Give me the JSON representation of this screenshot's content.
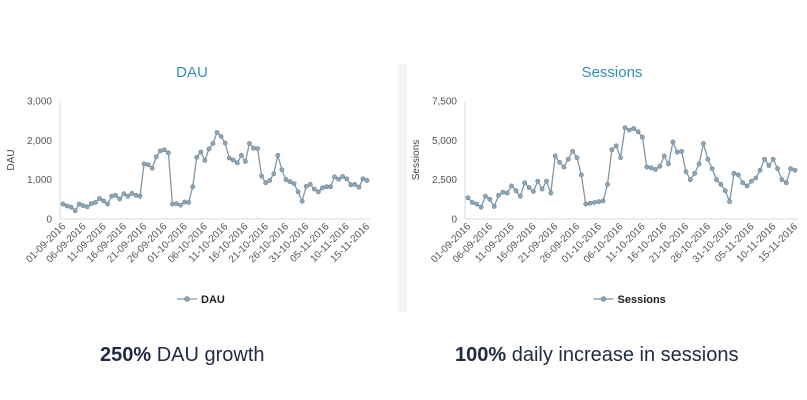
{
  "chart_data": [
    {
      "type": "line",
      "title": "DAU",
      "ylabel": "DAU",
      "xlabel": "",
      "ylim": [
        0,
        3000
      ],
      "yticks": [
        "0",
        "1,000",
        "2,000",
        "3,000"
      ],
      "yticks_values": [
        0,
        1000,
        2000,
        3000
      ],
      "x_tick_labels": [
        "01-09-2016",
        "06-09-2016",
        "11-09-2016",
        "16-09-2016",
        "21-09-2016",
        "26-09-2016",
        "01-10-2016",
        "06-10-2016",
        "11-10-2016",
        "16-10-2016",
        "21-10-2016",
        "26-10-2016",
        "31-10-2016",
        "05-11-2016",
        "10-11-2016",
        "15-11-2016"
      ],
      "legend": "bottom",
      "grid": false,
      "series": [
        {
          "name": "DAU",
          "color": "#7f97a8",
          "values": [
            380,
            330,
            300,
            210,
            380,
            340,
            310,
            390,
            420,
            520,
            460,
            380,
            580,
            600,
            510,
            640,
            580,
            650,
            600,
            580,
            1400,
            1380,
            1290,
            1580,
            1730,
            1760,
            1680,
            380,
            390,
            350,
            430,
            420,
            820,
            1570,
            1700,
            1490,
            1780,
            1920,
            2200,
            2100,
            1930,
            1550,
            1500,
            1430,
            1620,
            1460,
            1920,
            1800,
            1790,
            1090,
            920,
            980,
            1150,
            1620,
            1250,
            1000,
            950,
            900,
            690,
            450,
            830,
            880,
            760,
            690,
            790,
            820,
            820,
            1070,
            1010,
            1080,
            1020,
            870,
            880,
            810,
            1020,
            980
          ]
        }
      ]
    },
    {
      "type": "line",
      "title": "Sessions",
      "ylabel": "Sessions",
      "xlabel": "",
      "ylim": [
        0,
        7500
      ],
      "yticks": [
        "0",
        "2,500",
        "5,000",
        "7,500"
      ],
      "yticks_values": [
        0,
        2500,
        5000,
        7500
      ],
      "x_tick_labels": [
        "01-09-2016",
        "06-09-2016",
        "11-09-2016",
        "16-09-2016",
        "21-09-2016",
        "26-09-2016",
        "01-10-2016",
        "06-10-2016",
        "11-10-2016",
        "16-10-2016",
        "21-10-2016",
        "26-10-2016",
        "31-10-2016",
        "05-11-2016",
        "10-11-2016",
        "15-11-2016"
      ],
      "legend": "bottom",
      "grid": false,
      "series": [
        {
          "name": "Sessions",
          "color": "#7f97a8",
          "values": [
            1350,
            1050,
            950,
            750,
            1450,
            1250,
            800,
            1500,
            1700,
            1650,
            2100,
            1800,
            1450,
            2300,
            2000,
            1750,
            2400,
            1900,
            2400,
            1650,
            4000,
            3600,
            3300,
            3800,
            4300,
            3900,
            2800,
            950,
            1000,
            1050,
            1100,
            1150,
            2200,
            4400,
            4650,
            3900,
            5800,
            5650,
            5750,
            5550,
            5200,
            3300,
            3250,
            3150,
            3350,
            4000,
            3500,
            4900,
            4250,
            4300,
            3000,
            2500,
            2900,
            3500,
            4800,
            3800,
            3200,
            2500,
            2200,
            1800,
            1100,
            2900,
            2800,
            2300,
            2100,
            2400,
            2600,
            3100,
            3800,
            3400,
            3800,
            3200,
            2500,
            2300,
            3200,
            3100
          ]
        }
      ]
    }
  ],
  "captions": {
    "left_bold": "250%",
    "left_rest": " DAU growth",
    "right_bold": "100%",
    "right_rest": " daily increase in sessions"
  }
}
